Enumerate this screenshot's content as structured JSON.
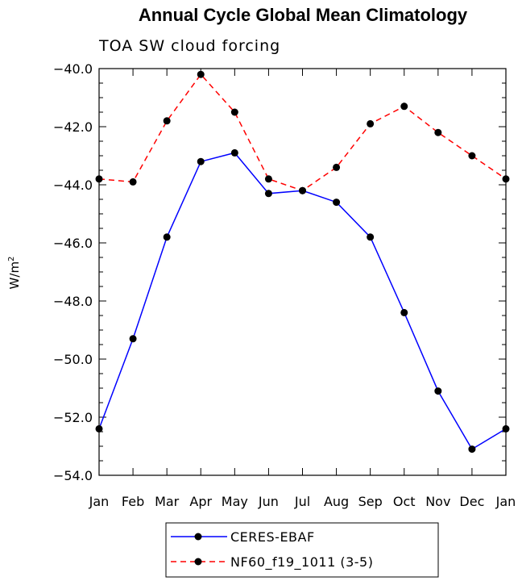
{
  "chart_data": {
    "type": "line",
    "title": "Annual Cycle Global Mean Climatology",
    "subtitle": "TOA SW cloud forcing",
    "ylabel": "W/m",
    "ylabel_superscript": "2",
    "ylim": [
      -54,
      -40
    ],
    "yticks": [
      "-40.0",
      "-42.0",
      "-44.0",
      "-46.0",
      "-48.0",
      "-50.0",
      "-52.0",
      "-54.0"
    ],
    "ytick_values": [
      -40,
      -42,
      -44,
      -46,
      -48,
      -50,
      -52,
      -54
    ],
    "categories": [
      "Jan",
      "Feb",
      "Mar",
      "Apr",
      "May",
      "Jun",
      "Jul",
      "Aug",
      "Sep",
      "Oct",
      "Nov",
      "Dec",
      "Jan"
    ],
    "grid": false,
    "legend_position": "bottom-center",
    "series": [
      {
        "name": "CERES-EBAF",
        "color": "#0000ff",
        "dash": "solid",
        "values": [
          -52.4,
          -49.3,
          -45.8,
          -43.2,
          -42.9,
          -44.3,
          -44.2,
          -44.6,
          -45.8,
          -48.4,
          -51.1,
          -53.1,
          -52.4
        ]
      },
      {
        "name": "NF60_f19_1011 (3-5)",
        "color": "#ff0000",
        "dash": "dashed",
        "values": [
          -43.8,
          -43.9,
          -41.8,
          -40.2,
          -41.5,
          -43.8,
          -44.2,
          -43.4,
          -41.9,
          -41.3,
          -42.2,
          -43.0,
          -43.8
        ]
      }
    ]
  }
}
